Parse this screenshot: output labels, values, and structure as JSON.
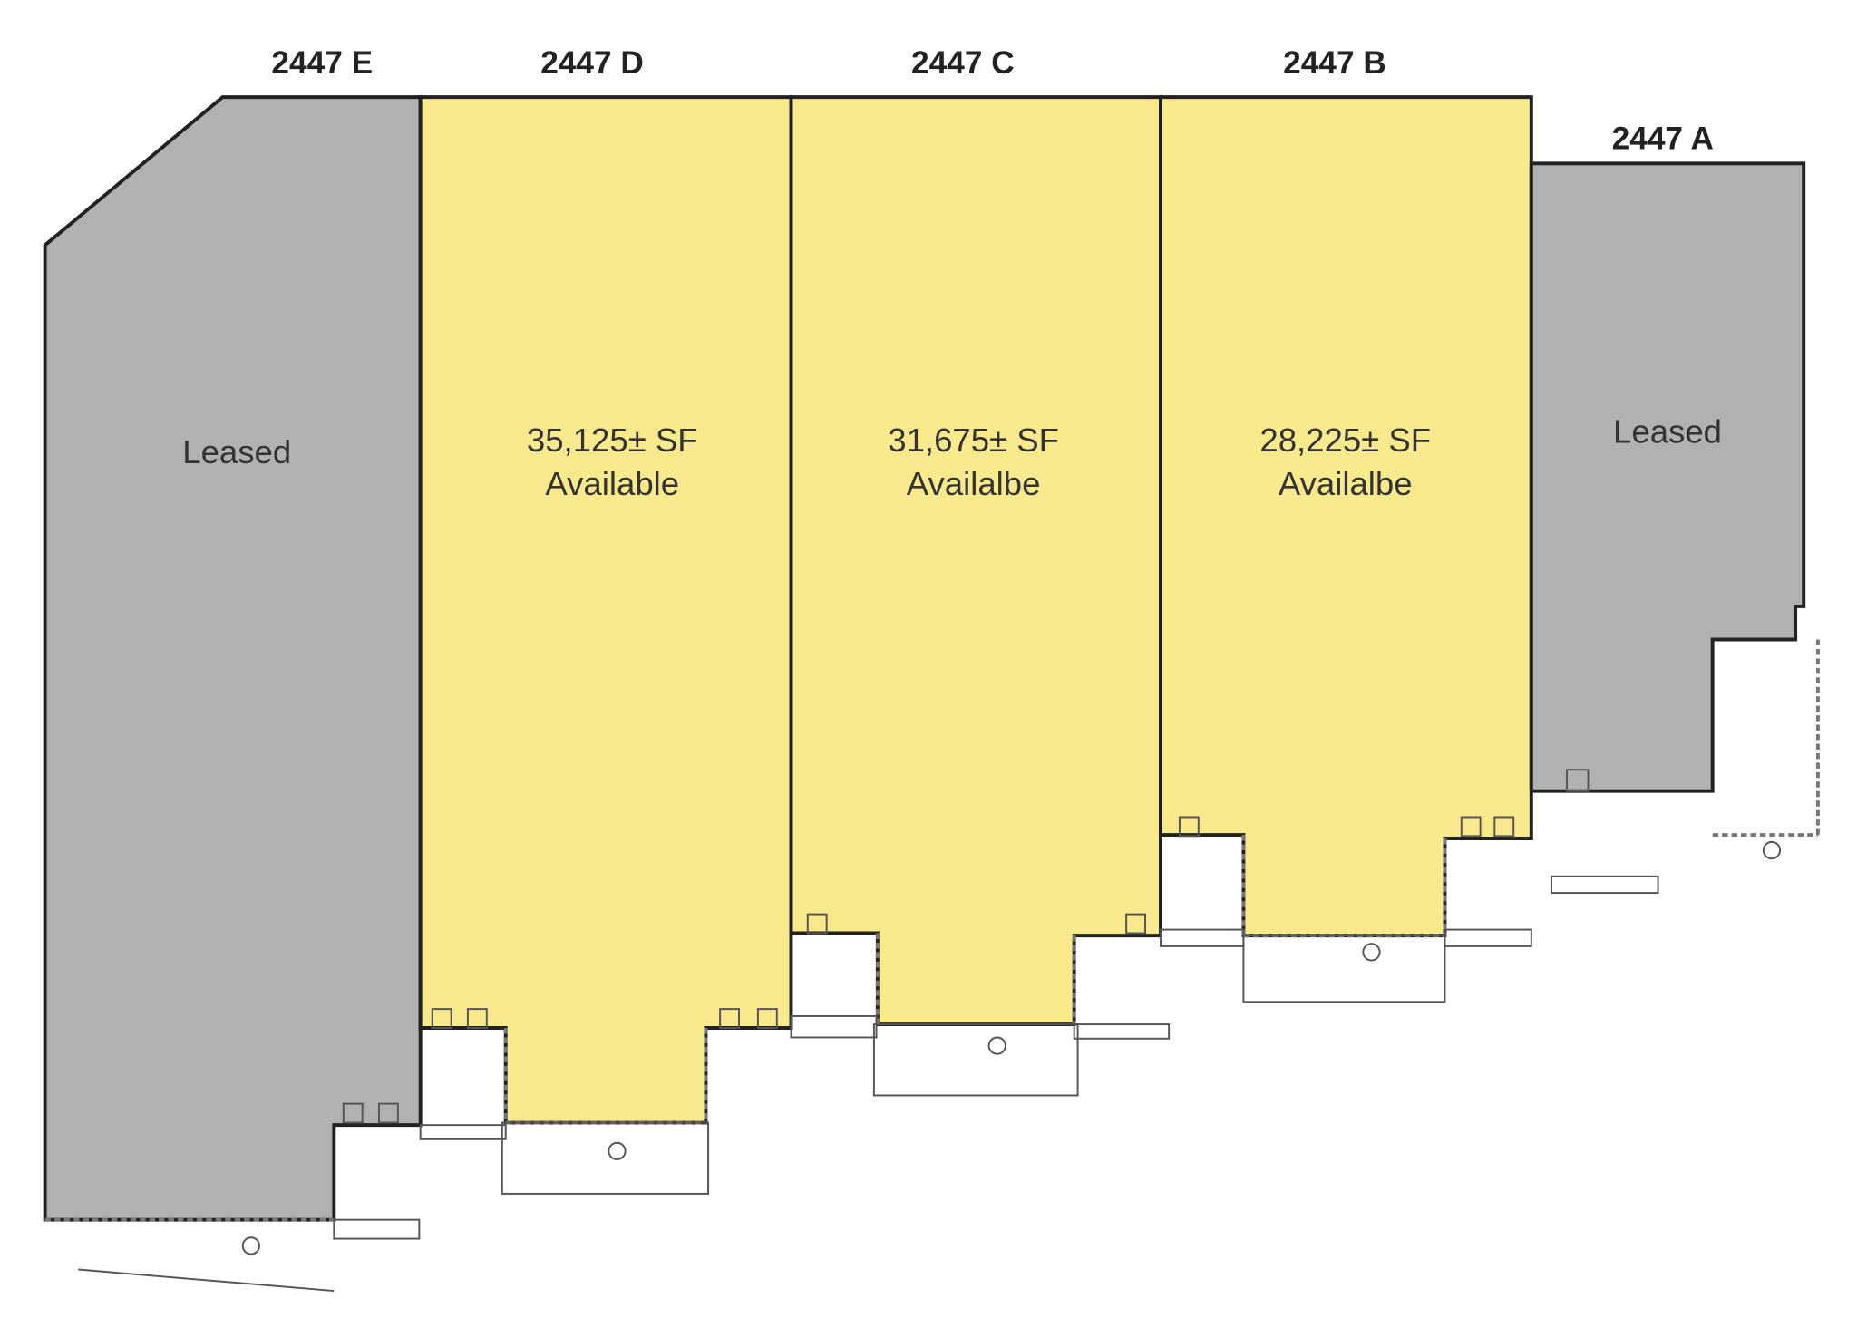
{
  "units": [
    {
      "label": "2447 E",
      "status": "Leased"
    },
    {
      "label": "2447 D",
      "area": "35,125± SF",
      "status": "Available"
    },
    {
      "label": "2447 C",
      "area": "31,675± SF",
      "status": "Availalbe"
    },
    {
      "label": "2447 B",
      "area": "28,225± SF",
      "status": "Availalbe"
    },
    {
      "label": "2447 A",
      "status": "Leased"
    }
  ]
}
